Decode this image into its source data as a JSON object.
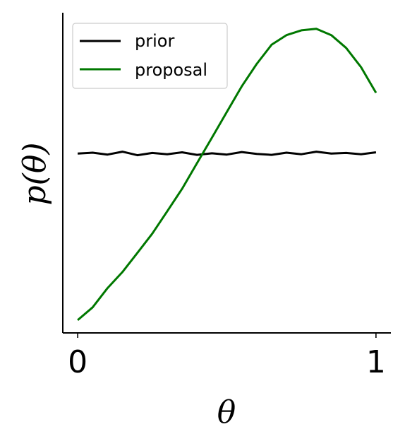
{
  "chart_data": {
    "type": "line",
    "xlabel": "θ",
    "ylabel": "p(θ)",
    "xlim": [
      -0.05,
      1.05
    ],
    "ylim": [
      0.0,
      1.0
    ],
    "xticks": [
      {
        "value": 0,
        "label": "0"
      },
      {
        "value": 1,
        "label": "1"
      }
    ],
    "yticks": [],
    "grid": false,
    "legend": "top-left",
    "series": [
      {
        "name": "prior",
        "color": "#000000",
        "x": [
          0.0,
          0.05,
          0.1,
          0.15,
          0.2,
          0.25,
          0.3,
          0.35,
          0.4,
          0.45,
          0.5,
          0.55,
          0.6,
          0.65,
          0.7,
          0.75,
          0.8,
          0.85,
          0.9,
          0.95,
          1.0
        ],
        "y": [
          0.56,
          0.563,
          0.557,
          0.566,
          0.555,
          0.562,
          0.558,
          0.564,
          0.556,
          0.561,
          0.557,
          0.565,
          0.559,
          0.556,
          0.563,
          0.558,
          0.566,
          0.56,
          0.562,
          0.558,
          0.564
        ]
      },
      {
        "name": "proposal",
        "color": "#007800",
        "x": [
          0.0,
          0.05,
          0.1,
          0.15,
          0.2,
          0.25,
          0.3,
          0.35,
          0.4,
          0.45,
          0.5,
          0.55,
          0.6,
          0.65,
          0.7,
          0.75,
          0.8,
          0.85,
          0.9,
          0.95,
          1.0
        ],
        "y": [
          0.04,
          0.08,
          0.14,
          0.19,
          0.25,
          0.31,
          0.38,
          0.45,
          0.53,
          0.61,
          0.69,
          0.77,
          0.84,
          0.9,
          0.93,
          0.945,
          0.95,
          0.93,
          0.89,
          0.83,
          0.75
        ]
      }
    ]
  }
}
